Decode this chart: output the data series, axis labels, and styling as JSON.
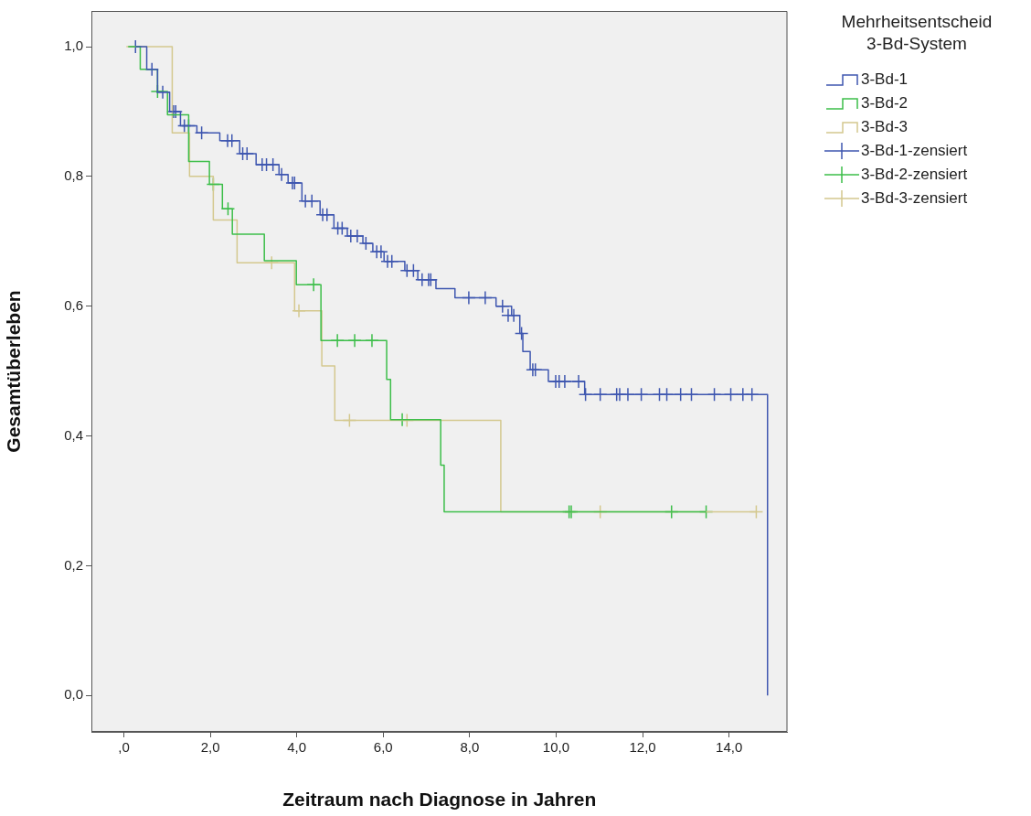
{
  "chart_data": {
    "type": "step",
    "xlabel": "Zeitraum nach Diagnose in Jahren",
    "ylabel": "Gesamtüberleben",
    "legend_title": "Mehrheitsentscheid\n3-Bd-System",
    "legend": "top right",
    "grid": false,
    "xlim": [
      -0.75,
      15.35
    ],
    "ylim": [
      -0.056,
      1.055
    ],
    "xticks": [
      {
        "value": 0,
        "label": ",0"
      },
      {
        "value": 2,
        "label": "2,0"
      },
      {
        "value": 4,
        "label": "4,0"
      },
      {
        "value": 6,
        "label": "6,0"
      },
      {
        "value": 8,
        "label": "8,0"
      },
      {
        "value": 10,
        "label": "10,0"
      },
      {
        "value": 12,
        "label": "12,0"
      },
      {
        "value": 14,
        "label": "14,0"
      }
    ],
    "yticks": [
      {
        "value": 0,
        "label": "0,0"
      },
      {
        "value": 0.2,
        "label": "0,2"
      },
      {
        "value": 0.4,
        "label": "0,4"
      },
      {
        "value": 0.6,
        "label": "0,6"
      },
      {
        "value": 0.8,
        "label": "0,8"
      },
      {
        "value": 1,
        "label": "1,0"
      }
    ],
    "series": [
      {
        "name": "3-Bd-1",
        "marker": "none",
        "color": "#3f57b0",
        "x": [
          0.27,
          0.53,
          0.78,
          1.06,
          1.31,
          1.69,
          2.22,
          2.68,
          3.06,
          3.59,
          3.8,
          4.12,
          4.54,
          4.86,
          5.17,
          5.53,
          5.76,
          6.02,
          6.5,
          6.8,
          7.22,
          7.66,
          8.61,
          8.97,
          9.16,
          9.23,
          9.4,
          9.82,
          10.66,
          14.89
        ],
        "values": [
          1.0,
          0.965,
          0.93,
          0.9,
          0.878,
          0.867,
          0.855,
          0.835,
          0.818,
          0.803,
          0.79,
          0.762,
          0.741,
          0.72,
          0.708,
          0.697,
          0.684,
          0.669,
          0.655,
          0.641,
          0.627,
          0.613,
          0.6,
          0.586,
          0.558,
          0.53,
          0.502,
          0.484,
          0.464,
          0
        ]
      },
      {
        "name": "3-Bd-2",
        "marker": "none",
        "color": "#3dbe4a",
        "x": [
          0.1,
          0.38,
          0.78,
          1.01,
          1.5,
          1.98,
          2.28,
          2.51,
          3.25,
          3.99,
          4.56,
          6.08,
          6.17,
          7.33,
          7.41,
          13.47
        ],
        "values": [
          1.0,
          0.965,
          0.931,
          0.895,
          0.823,
          0.788,
          0.75,
          0.711,
          0.67,
          0.633,
          0.547,
          0.487,
          0.425,
          0.355,
          0.283,
          0.283
        ]
      },
      {
        "name": "3-Bd-3",
        "marker": "none",
        "color": "#d4c88e",
        "x": [
          0.06,
          1.12,
          1.52,
          2.07,
          2.62,
          3.95,
          4.58,
          4.88,
          8.72,
          14.63
        ],
        "values": [
          1.0,
          0.867,
          0.8,
          0.733,
          0.667,
          0.593,
          0.508,
          0.424,
          0.283,
          0.283
        ]
      },
      {
        "name": "3-Bd-1-zensiert",
        "type": "scatter",
        "marker": "cross",
        "color": "#3f57b0",
        "x": [
          0.27,
          0.65,
          0.9,
          1.15,
          1.2,
          1.4,
          1.5,
          1.8,
          2.4,
          2.5,
          2.75,
          2.85,
          3.2,
          3.3,
          3.45,
          3.65,
          3.9,
          3.95,
          4.2,
          4.35,
          4.6,
          4.7,
          4.95,
          5.05,
          5.25,
          5.4,
          5.6,
          5.85,
          5.95,
          6.1,
          6.2,
          6.55,
          6.7,
          6.9,
          7.05,
          7.1,
          7.98,
          8.36,
          8.76,
          8.89,
          9.02,
          9.2,
          9.46,
          9.52,
          9.99,
          10.07,
          10.2,
          10.52,
          10.68,
          11.02,
          11.4,
          11.47,
          11.66,
          11.97,
          12.39,
          12.56,
          12.88,
          13.13,
          13.66,
          14.04,
          14.32,
          14.53
        ],
        "values": [
          1.0,
          0.965,
          0.93,
          0.9,
          0.9,
          0.878,
          0.878,
          0.867,
          0.855,
          0.855,
          0.835,
          0.835,
          0.818,
          0.818,
          0.818,
          0.803,
          0.79,
          0.79,
          0.762,
          0.762,
          0.741,
          0.741,
          0.72,
          0.72,
          0.708,
          0.708,
          0.697,
          0.684,
          0.684,
          0.669,
          0.669,
          0.655,
          0.655,
          0.641,
          0.641,
          0.641,
          0.613,
          0.613,
          0.6,
          0.586,
          0.586,
          0.558,
          0.502,
          0.502,
          0.484,
          0.484,
          0.484,
          0.484,
          0.464,
          0.464,
          0.464,
          0.464,
          0.464,
          0.464,
          0.464,
          0.464,
          0.464,
          0.464,
          0.464,
          0.464,
          0.464,
          0.464
        ]
      },
      {
        "name": "3-Bd-2-zensiert",
        "type": "scatter",
        "marker": "cross",
        "color": "#3dbe4a",
        "x": [
          0.78,
          2.07,
          2.41,
          4.39,
          4.94,
          5.34,
          5.74,
          6.44,
          10.3,
          10.35,
          12.67,
          13.47
        ],
        "values": [
          0.931,
          0.788,
          0.75,
          0.633,
          0.547,
          0.547,
          0.547,
          0.425,
          0.283,
          0.283,
          0.283,
          0.283
        ]
      },
      {
        "name": "3-Bd-3-zensiert",
        "type": "scatter",
        "marker": "cross",
        "color": "#d4c88e",
        "x": [
          3.42,
          4.05,
          5.22,
          6.55,
          11.02,
          14.63
        ],
        "values": [
          0.667,
          0.593,
          0.424,
          0.424,
          0.283,
          0.283
        ]
      }
    ]
  }
}
